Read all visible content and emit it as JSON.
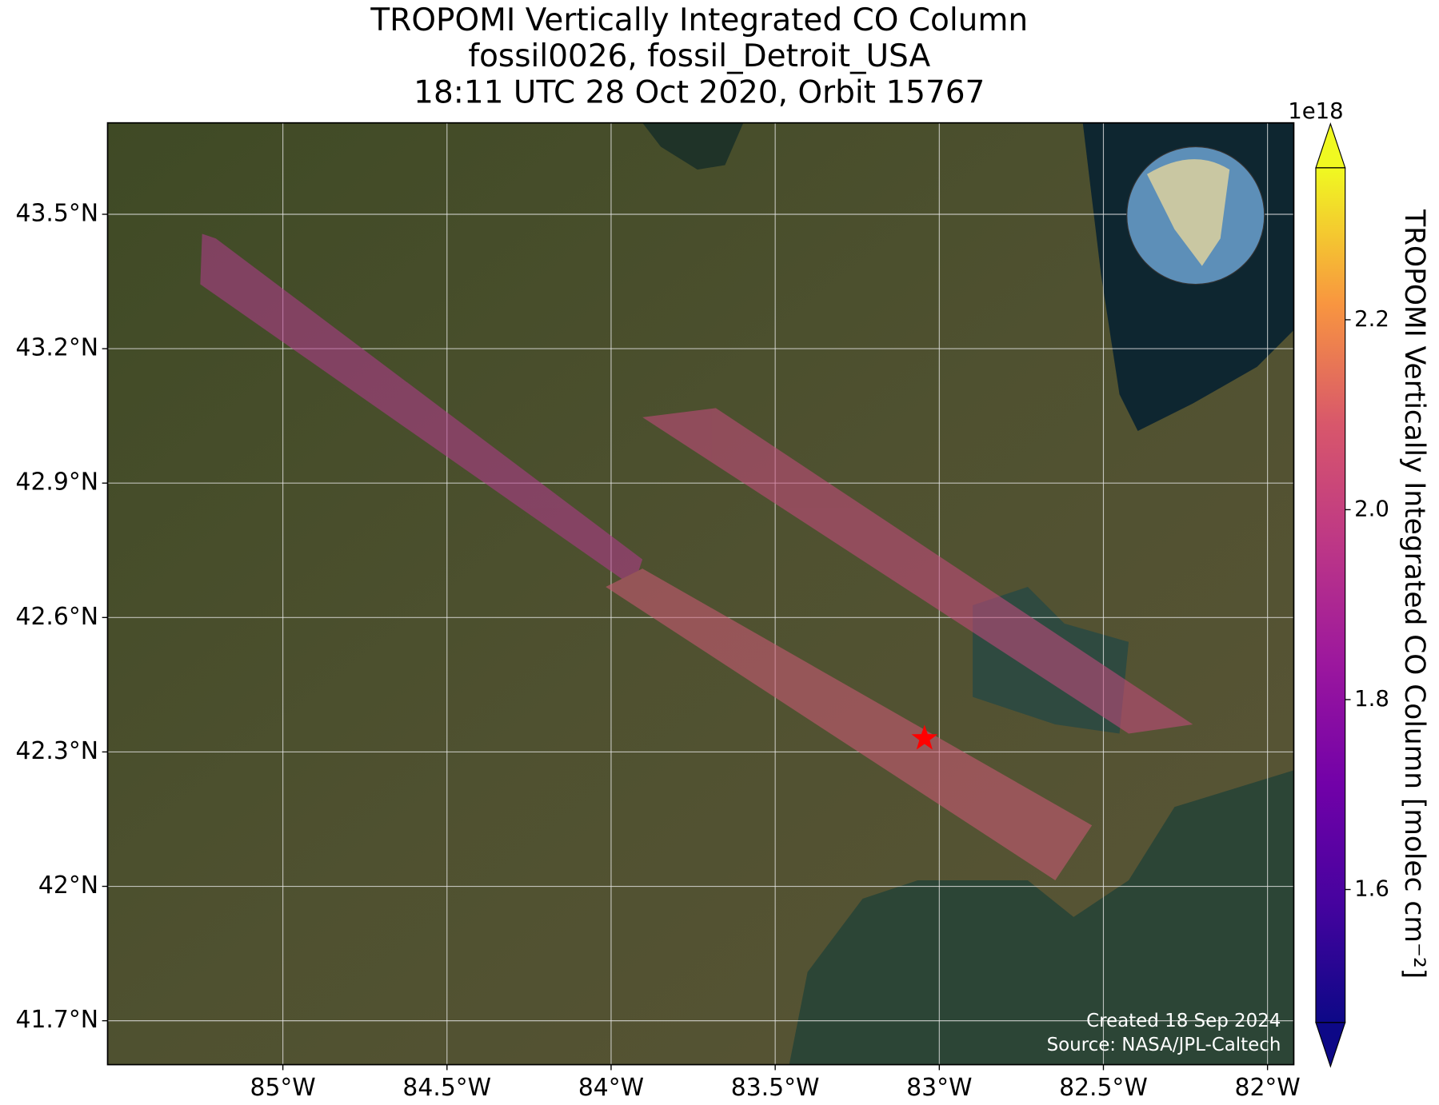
{
  "chart_data": {
    "type": "map",
    "title": [
      "TROPOMI Vertically Integrated CO Column",
      "fossil0026, fossil_Detroit_USA",
      "18:11 UTC 28 Oct 2020, Orbit 15767"
    ],
    "xlim": [
      -85.534,
      -81.92
    ],
    "ylim": [
      41.602,
      43.704
    ],
    "xticks": [
      {
        "value": -85,
        "label": "85°W"
      },
      {
        "value": -84.5,
        "label": "84.5°W"
      },
      {
        "value": -84,
        "label": "84°W"
      },
      {
        "value": -83.5,
        "label": "83.5°W"
      },
      {
        "value": -83,
        "label": "83°W"
      },
      {
        "value": -82.5,
        "label": "82.5°W"
      },
      {
        "value": -82,
        "label": "82°W"
      }
    ],
    "yticks": [
      {
        "value": 41.7,
        "label": "41.7°N"
      },
      {
        "value": 42,
        "label": "42°N"
      },
      {
        "value": 42.3,
        "label": "42.3°N"
      },
      {
        "value": 42.6,
        "label": "42.6°N"
      },
      {
        "value": 42.9,
        "label": "42.9°N"
      },
      {
        "value": 43.2,
        "label": "43.2°N"
      },
      {
        "value": 43.5,
        "label": "43.5°N"
      }
    ],
    "grid": true,
    "site": {
      "lon": -83.045,
      "lat": 42.33,
      "color": "#ff0000"
    },
    "colorbar": {
      "label": "TROPOMI Vertically Integrated CO Column [molec cm⁻²]",
      "scale_label": "1e18",
      "colormap": "plasma",
      "lim": [
        1.46,
        2.36
      ],
      "ticks": [
        1.6,
        1.8,
        {
          "value": 2.0,
          "label": "2.0"
        },
        2.2
      ]
    },
    "credits": [
      "Created 18 Sep 2024",
      "Source: NASA/JPL-Caltech"
    ]
  }
}
